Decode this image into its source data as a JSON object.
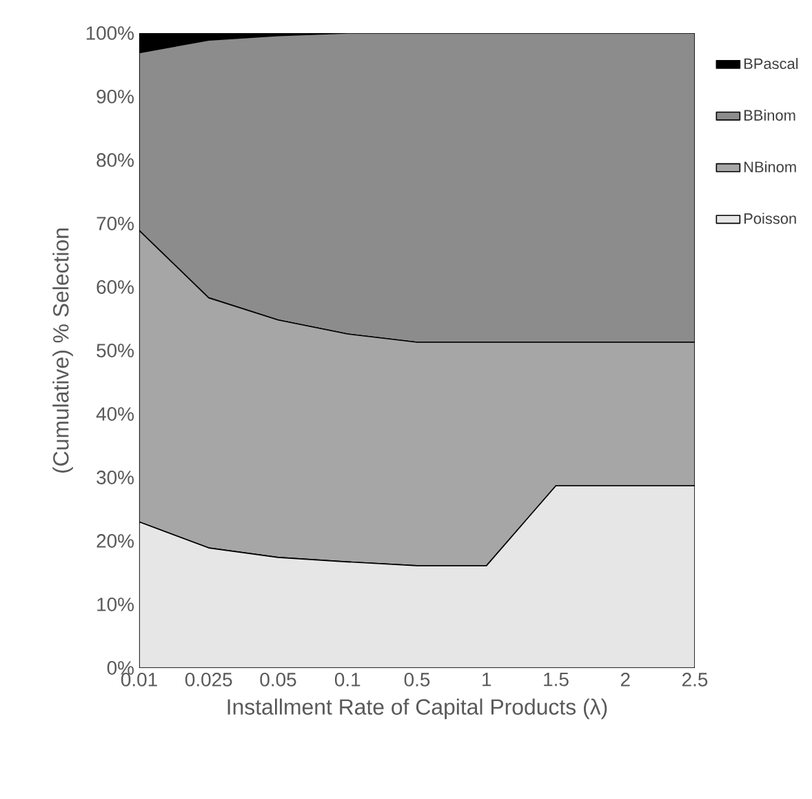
{
  "chart_data": {
    "type": "area",
    "stacked": true,
    "xlabel": "Installment Rate of Capital Products (λ)",
    "ylabel": "(Cumulative) % Selection",
    "categories": [
      "0.01",
      "0.025",
      "0.05",
      "0.1",
      "0.5",
      "1",
      "1.5",
      "2",
      "2.5"
    ],
    "series": [
      {
        "name": "Poisson",
        "color": "#e6e6e6",
        "values": [
          23,
          18.9,
          17.4,
          16.7,
          16.1,
          16.1,
          28.7,
          28.7,
          28.7
        ]
      },
      {
        "name": "NBinom",
        "color": "#a6a6a6",
        "values": [
          45.9,
          39.4,
          37.4,
          35.9,
          35.2,
          35.2,
          22.6,
          22.6,
          22.6
        ]
      },
      {
        "name": "BBinom",
        "color": "#8c8c8c",
        "values": [
          28,
          40.6,
          44.8,
          47.4,
          48.7,
          48.7,
          48.7,
          48.7,
          48.7
        ]
      },
      {
        "name": "BPascal",
        "color": "#000000",
        "values": [
          3.1,
          1.1,
          0.4,
          0,
          0,
          0,
          0,
          0,
          0
        ]
      }
    ],
    "ylim": [
      0,
      100
    ],
    "yticks": [
      {
        "value": 0,
        "label": "0%"
      },
      {
        "value": 10,
        "label": "10%"
      },
      {
        "value": 20,
        "label": "20%"
      },
      {
        "value": 30,
        "label": "30%"
      },
      {
        "value": 40,
        "label": "40%"
      },
      {
        "value": 50,
        "label": "50%"
      },
      {
        "value": 60,
        "label": "60%"
      },
      {
        "value": 70,
        "label": "70%"
      },
      {
        "value": 80,
        "label": "80%"
      },
      {
        "value": 90,
        "label": "90%"
      },
      {
        "value": 100,
        "label": "100%"
      }
    ],
    "grid": false,
    "legend": "right"
  }
}
